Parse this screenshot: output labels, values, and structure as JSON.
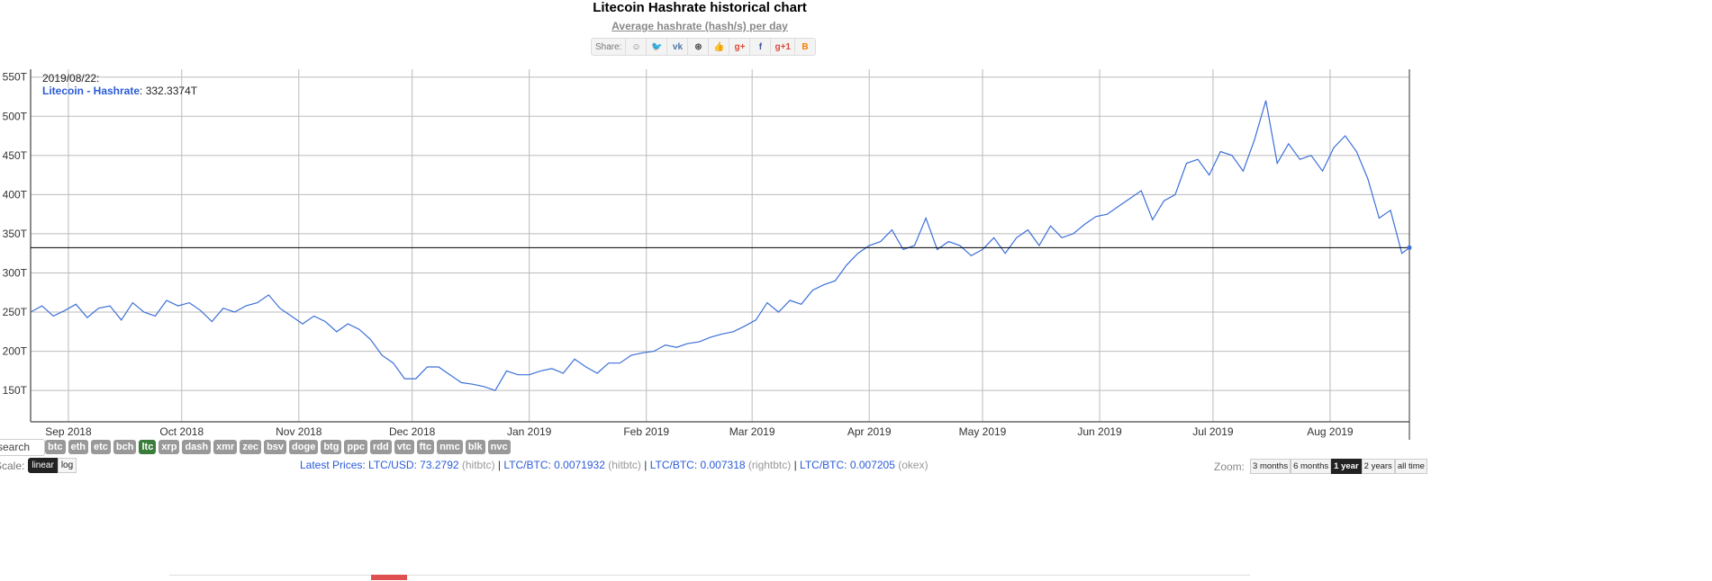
{
  "header": {
    "title": "Litecoin Hashrate historical chart",
    "subtitle": "Average hashrate (hash/s) per day"
  },
  "share": {
    "label": "Share:",
    "icons": [
      {
        "name": "reddit-icon",
        "glyph": "☺",
        "color": "#777"
      },
      {
        "name": "twitter-icon",
        "glyph": "🐦",
        "color": "#4aa8e8"
      },
      {
        "name": "vk-icon",
        "glyph": "vk",
        "color": "#4c75a3"
      },
      {
        "name": "weibo-icon",
        "glyph": "⊛",
        "color": "#555"
      },
      {
        "name": "like-icon",
        "glyph": "👍",
        "color": "#4c75a3"
      },
      {
        "name": "google-plus-icon",
        "glyph": "g+",
        "color": "#dd4b39"
      },
      {
        "name": "facebook-icon",
        "glyph": "f",
        "color": "#3b5998"
      },
      {
        "name": "google-plus-one-icon",
        "glyph": "g+1",
        "color": "#dd4b39"
      },
      {
        "name": "blogger-icon",
        "glyph": "B",
        "color": "#f57d00"
      }
    ]
  },
  "tooltip": {
    "date": "2019/08/22:",
    "series": "Litecoin - Hashrate",
    "value": ": 332.3374T"
  },
  "controls": {
    "search_value": "search",
    "coins": [
      "btc",
      "eth",
      "etc",
      "bch",
      "ltc",
      "xrp",
      "dash",
      "xmr",
      "zec",
      "bsv",
      "doge",
      "btg",
      "ppc",
      "rdd",
      "vtc",
      "ftc",
      "nmc",
      "blk",
      "nvc"
    ],
    "active_coin": "ltc",
    "scale_label": "Scale:",
    "scale_options": [
      "linear",
      "log"
    ],
    "scale_selected": "linear",
    "zoom_label": "Zoom:",
    "zoom_options": [
      "3 months",
      "6 months",
      "1 year",
      "2 years",
      "all time"
    ],
    "zoom_selected": "1 year"
  },
  "prices": {
    "label": "Latest Prices:",
    "items": [
      {
        "pair": "LTC/USD: 73.2792",
        "source": "(hitbtc)"
      },
      {
        "pair": "LTC/BTC: 0.0071932",
        "source": "(hitbtc)"
      },
      {
        "pair": "LTC/BTC: 0.007318",
        "source": "(rightbtc)"
      },
      {
        "pair": "LTC/BTC: 0.007205",
        "source": "(okex)"
      }
    ]
  },
  "chart_data": {
    "type": "line",
    "title": "Litecoin Hashrate historical chart",
    "subtitle": "Average hashrate (hash/s) per day",
    "series_name": "Litecoin - Hashrate",
    "color": "#3c6fd8",
    "grid": true,
    "xlim": [
      "2018-08-22",
      "2019-08-22"
    ],
    "ylim": [
      110,
      560
    ],
    "y_unit": "T",
    "yticks": [
      150,
      200,
      250,
      300,
      350,
      400,
      450,
      500,
      550
    ],
    "ytick_labels": [
      "150T",
      "200T",
      "250T",
      "300T",
      "350T",
      "400T",
      "450T",
      "500T",
      "550T"
    ],
    "xticks": [
      "2018-09-01",
      "2018-10-01",
      "2018-11-01",
      "2018-12-01",
      "2019-01-01",
      "2019-02-01",
      "2019-03-01",
      "2019-04-01",
      "2019-05-01",
      "2019-06-01",
      "2019-07-01",
      "2019-08-01"
    ],
    "xtick_labels": [
      "Sep 2018",
      "Oct 2018",
      "Nov 2018",
      "Dec 2018",
      "Jan 2019",
      "Feb 2019",
      "Mar 2019",
      "Apr 2019",
      "May 2019",
      "Jun 2019",
      "Jul 2019",
      "Aug 2019"
    ],
    "crosshair_value": 332.3374,
    "points": [
      [
        "2018-08-22",
        250
      ],
      [
        "2018-08-25",
        258
      ],
      [
        "2018-08-28",
        245
      ],
      [
        "2018-08-31",
        252
      ],
      [
        "2018-09-03",
        260
      ],
      [
        "2018-09-06",
        243
      ],
      [
        "2018-09-09",
        255
      ],
      [
        "2018-09-12",
        258
      ],
      [
        "2018-09-15",
        240
      ],
      [
        "2018-09-18",
        262
      ],
      [
        "2018-09-21",
        250
      ],
      [
        "2018-09-24",
        245
      ],
      [
        "2018-09-27",
        265
      ],
      [
        "2018-09-30",
        258
      ],
      [
        "2018-10-03",
        262
      ],
      [
        "2018-10-06",
        252
      ],
      [
        "2018-10-09",
        238
      ],
      [
        "2018-10-12",
        255
      ],
      [
        "2018-10-15",
        250
      ],
      [
        "2018-10-18",
        258
      ],
      [
        "2018-10-21",
        262
      ],
      [
        "2018-10-24",
        272
      ],
      [
        "2018-10-27",
        255
      ],
      [
        "2018-10-30",
        245
      ],
      [
        "2018-11-02",
        235
      ],
      [
        "2018-11-05",
        245
      ],
      [
        "2018-11-08",
        238
      ],
      [
        "2018-11-11",
        225
      ],
      [
        "2018-11-14",
        235
      ],
      [
        "2018-11-17",
        228
      ],
      [
        "2018-11-20",
        215
      ],
      [
        "2018-11-23",
        195
      ],
      [
        "2018-11-26",
        185
      ],
      [
        "2018-11-29",
        165
      ],
      [
        "2018-12-02",
        165
      ],
      [
        "2018-12-05",
        180
      ],
      [
        "2018-12-08",
        180
      ],
      [
        "2018-12-11",
        170
      ],
      [
        "2018-12-14",
        160
      ],
      [
        "2018-12-17",
        158
      ],
      [
        "2018-12-20",
        155
      ],
      [
        "2018-12-23",
        150
      ],
      [
        "2018-12-26",
        175
      ],
      [
        "2018-12-29",
        170
      ],
      [
        "2019-01-01",
        170
      ],
      [
        "2019-01-04",
        175
      ],
      [
        "2019-01-07",
        178
      ],
      [
        "2019-01-10",
        172
      ],
      [
        "2019-01-13",
        190
      ],
      [
        "2019-01-16",
        180
      ],
      [
        "2019-01-19",
        172
      ],
      [
        "2019-01-22",
        185
      ],
      [
        "2019-01-25",
        185
      ],
      [
        "2019-01-28",
        195
      ],
      [
        "2019-01-31",
        198
      ],
      [
        "2019-02-03",
        200
      ],
      [
        "2019-02-06",
        208
      ],
      [
        "2019-02-09",
        205
      ],
      [
        "2019-02-12",
        210
      ],
      [
        "2019-02-15",
        212
      ],
      [
        "2019-02-18",
        218
      ],
      [
        "2019-02-21",
        222
      ],
      [
        "2019-02-24",
        225
      ],
      [
        "2019-02-27",
        232
      ],
      [
        "2019-03-02",
        240
      ],
      [
        "2019-03-05",
        262
      ],
      [
        "2019-03-08",
        250
      ],
      [
        "2019-03-11",
        265
      ],
      [
        "2019-03-14",
        260
      ],
      [
        "2019-03-17",
        278
      ],
      [
        "2019-03-20",
        285
      ],
      [
        "2019-03-23",
        290
      ],
      [
        "2019-03-26",
        310
      ],
      [
        "2019-03-29",
        325
      ],
      [
        "2019-04-01",
        335
      ],
      [
        "2019-04-04",
        340
      ],
      [
        "2019-04-07",
        355
      ],
      [
        "2019-04-10",
        330
      ],
      [
        "2019-04-13",
        335
      ],
      [
        "2019-04-16",
        370
      ],
      [
        "2019-04-19",
        330
      ],
      [
        "2019-04-22",
        340
      ],
      [
        "2019-04-25",
        335
      ],
      [
        "2019-04-28",
        322
      ],
      [
        "2019-05-01",
        330
      ],
      [
        "2019-05-04",
        345
      ],
      [
        "2019-05-07",
        325
      ],
      [
        "2019-05-10",
        345
      ],
      [
        "2019-05-13",
        355
      ],
      [
        "2019-05-16",
        335
      ],
      [
        "2019-05-19",
        360
      ],
      [
        "2019-05-22",
        345
      ],
      [
        "2019-05-25",
        350
      ],
      [
        "2019-05-28",
        362
      ],
      [
        "2019-05-31",
        372
      ],
      [
        "2019-06-03",
        375
      ],
      [
        "2019-06-06",
        385
      ],
      [
        "2019-06-09",
        395
      ],
      [
        "2019-06-12",
        405
      ],
      [
        "2019-06-15",
        368
      ],
      [
        "2019-06-18",
        392
      ],
      [
        "2019-06-21",
        400
      ],
      [
        "2019-06-24",
        440
      ],
      [
        "2019-06-27",
        445
      ],
      [
        "2019-06-30",
        425
      ],
      [
        "2019-07-03",
        455
      ],
      [
        "2019-07-06",
        450
      ],
      [
        "2019-07-09",
        430
      ],
      [
        "2019-07-12",
        470
      ],
      [
        "2019-07-15",
        520
      ],
      [
        "2019-07-18",
        440
      ],
      [
        "2019-07-21",
        465
      ],
      [
        "2019-07-24",
        445
      ],
      [
        "2019-07-27",
        450
      ],
      [
        "2019-07-30",
        430
      ],
      [
        "2019-08-02",
        460
      ],
      [
        "2019-08-05",
        475
      ],
      [
        "2019-08-08",
        455
      ],
      [
        "2019-08-11",
        420
      ],
      [
        "2019-08-14",
        370
      ],
      [
        "2019-08-17",
        380
      ],
      [
        "2019-08-20",
        325
      ],
      [
        "2019-08-22",
        332.3374
      ]
    ]
  }
}
